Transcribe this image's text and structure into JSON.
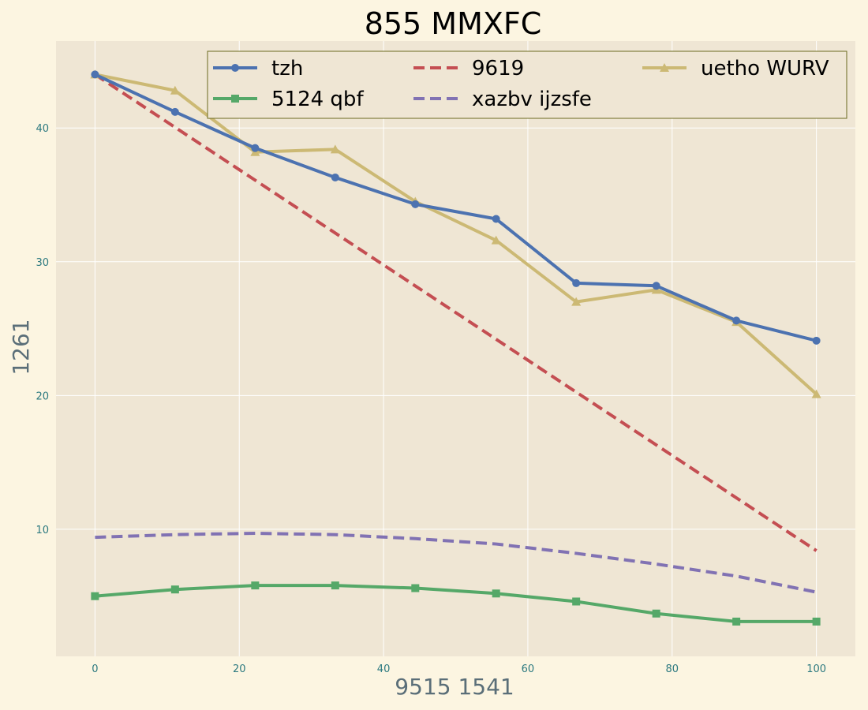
{
  "chart_data": {
    "type": "line",
    "title": "855 MMXFC",
    "xlabel": "9515 1541",
    "ylabel": "1261",
    "xlim": [
      -5.4,
      105.4
    ],
    "ylim": [
      0.5,
      46.5
    ],
    "x_ticks": [
      0,
      20,
      40,
      60,
      80,
      100
    ],
    "y_ticks": [
      10,
      20,
      30,
      40
    ],
    "grid": true,
    "legend_position": "top",
    "series": [
      {
        "name": "tzh",
        "color": "#4c72b0",
        "dash": "solid",
        "marker": "circle",
        "x": [
          0,
          11.1,
          22.2,
          33.3,
          44.4,
          55.6,
          66.7,
          77.8,
          88.9,
          100
        ],
        "y": [
          44.0,
          41.2,
          38.5,
          36.3,
          34.3,
          33.2,
          28.4,
          28.2,
          25.6,
          24.1
        ]
      },
      {
        "name": "9619",
        "color": "#c44e52",
        "dash": "dashed",
        "marker": "none",
        "x": [
          0,
          100
        ],
        "y": [
          44.0,
          8.4
        ]
      },
      {
        "name": "uetho WURV",
        "color": "#ccb974",
        "dash": "solid",
        "marker": "triangle",
        "x": [
          0,
          11.1,
          22.2,
          33.3,
          44.4,
          55.6,
          66.7,
          77.8,
          88.9,
          100
        ],
        "y": [
          44.0,
          42.8,
          38.2,
          38.4,
          34.5,
          31.6,
          27.0,
          27.9,
          25.5,
          20.1
        ]
      },
      {
        "name": "5124 qbf",
        "color": "#55a868",
        "dash": "solid",
        "marker": "square",
        "x": [
          0,
          11.1,
          22.2,
          33.3,
          44.4,
          55.6,
          66.7,
          77.8,
          88.9,
          100
        ],
        "y": [
          5.0,
          5.5,
          5.8,
          5.8,
          5.6,
          5.2,
          4.6,
          3.7,
          3.1,
          3.1
        ]
      },
      {
        "name": "xazbv ijzsfe",
        "color": "#8172b3",
        "dash": "dashed",
        "marker": "none",
        "x": [
          0,
          11.1,
          22.2,
          33.3,
          44.4,
          55.6,
          66.7,
          77.8,
          88.9,
          100
        ],
        "y": [
          9.4,
          9.6,
          9.7,
          9.6,
          9.3,
          8.9,
          8.2,
          7.4,
          6.5,
          5.3
        ]
      }
    ]
  }
}
